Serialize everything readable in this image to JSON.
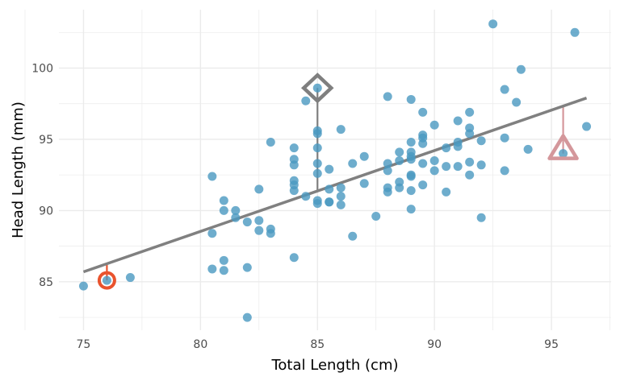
{
  "chart_data": {
    "type": "scatter",
    "xlabel": "Total Length (cm)",
    "ylabel": "Head Length (mm)",
    "xlim": [
      73.95,
      97.55
    ],
    "ylim": [
      81.6,
      104.1
    ],
    "x_ticks": [
      75,
      80,
      85,
      90,
      95
    ],
    "y_ticks": [
      85,
      90,
      95,
      100
    ],
    "grid": true,
    "colors": {
      "points": "#4a98c0",
      "line": "#808080",
      "circle": "#e9532d",
      "diamond": "#7f7f7f",
      "triangle": "#d4979b"
    },
    "regression_line": {
      "x": [
        75,
        96.5
      ],
      "y": [
        85.7,
        97.9
      ]
    },
    "highlighted": [
      {
        "marker": "circle",
        "x": 76.0,
        "y": 85.1
      },
      {
        "marker": "diamond",
        "x": 85.0,
        "y": 98.6
      },
      {
        "marker": "triangle",
        "x": 95.5,
        "y": 94.0
      }
    ],
    "points": [
      [
        75,
        84.7
      ],
      [
        76,
        85.1
      ],
      [
        77,
        85.3
      ],
      [
        80.5,
        92.4
      ],
      [
        80.5,
        88.4
      ],
      [
        80.5,
        85.9
      ],
      [
        81,
        90.7
      ],
      [
        81,
        90.0
      ],
      [
        81,
        86.5
      ],
      [
        81,
        85.8
      ],
      [
        81.5,
        90.0
      ],
      [
        81.5,
        89.5
      ],
      [
        82,
        89.2
      ],
      [
        82,
        86.0
      ],
      [
        82,
        82.5
      ],
      [
        82.5,
        91.5
      ],
      [
        82.5,
        89.3
      ],
      [
        82.5,
        88.6
      ],
      [
        83,
        94.8
      ],
      [
        83,
        88.7
      ],
      [
        83,
        88.4
      ],
      [
        84,
        94.4
      ],
      [
        84,
        93.6
      ],
      [
        84,
        93.2
      ],
      [
        84,
        92.1
      ],
      [
        84,
        91.8
      ],
      [
        84,
        91.4
      ],
      [
        84,
        86.7
      ],
      [
        84.5,
        97.7
      ],
      [
        84.5,
        91.0
      ],
      [
        85,
        98.6
      ],
      [
        85,
        95.6
      ],
      [
        85,
        95.4
      ],
      [
        85,
        94.4
      ],
      [
        85,
        93.3
      ],
      [
        85,
        92.6
      ],
      [
        85,
        90.7
      ],
      [
        85,
        90.5
      ],
      [
        85.5,
        92.9
      ],
      [
        85.5,
        91.5
      ],
      [
        85.5,
        90.6
      ],
      [
        85.5,
        90.6
      ],
      [
        86,
        95.7
      ],
      [
        86,
        91.6
      ],
      [
        86,
        91.0
      ],
      [
        86,
        90.4
      ],
      [
        86.5,
        93.3
      ],
      [
        86.5,
        88.2
      ],
      [
        87,
        93.8
      ],
      [
        87,
        91.9
      ],
      [
        87.5,
        89.6
      ],
      [
        88,
        98.0
      ],
      [
        88,
        93.3
      ],
      [
        88,
        92.8
      ],
      [
        88,
        91.6
      ],
      [
        88,
        91.3
      ],
      [
        88.5,
        94.1
      ],
      [
        88.5,
        93.5
      ],
      [
        88.5,
        92.0
      ],
      [
        88.5,
        91.6
      ],
      [
        89,
        97.8
      ],
      [
        89,
        94.8
      ],
      [
        89,
        94.1
      ],
      [
        89,
        93.8
      ],
      [
        89,
        93.6
      ],
      [
        89,
        92.5
      ],
      [
        89,
        92.4
      ],
      [
        89,
        91.4
      ],
      [
        89,
        90.1
      ],
      [
        89.5,
        96.9
      ],
      [
        89.5,
        95.3
      ],
      [
        89.5,
        95.1
      ],
      [
        89.5,
        94.7
      ],
      [
        89.5,
        93.3
      ],
      [
        89.5,
        91.8
      ],
      [
        90,
        96.0
      ],
      [
        90,
        93.5
      ],
      [
        90,
        92.8
      ],
      [
        90.5,
        94.4
      ],
      [
        90.5,
        93.1
      ],
      [
        90.5,
        91.3
      ],
      [
        91,
        96.3
      ],
      [
        91,
        94.8
      ],
      [
        91,
        94.5
      ],
      [
        91,
        93.1
      ],
      [
        91.5,
        96.9
      ],
      [
        91.5,
        95.8
      ],
      [
        91.5,
        95.4
      ],
      [
        91.5,
        93.4
      ],
      [
        91.5,
        92.5
      ],
      [
        92,
        94.9
      ],
      [
        92,
        93.2
      ],
      [
        92,
        89.5
      ],
      [
        92.5,
        103.1
      ],
      [
        93,
        98.5
      ],
      [
        93,
        95.1
      ],
      [
        93,
        92.8
      ],
      [
        93.5,
        97.6
      ],
      [
        93.7,
        99.9
      ],
      [
        94,
        94.3
      ],
      [
        95.5,
        94.0
      ],
      [
        96,
        102.5
      ],
      [
        96.5,
        95.9
      ]
    ]
  }
}
